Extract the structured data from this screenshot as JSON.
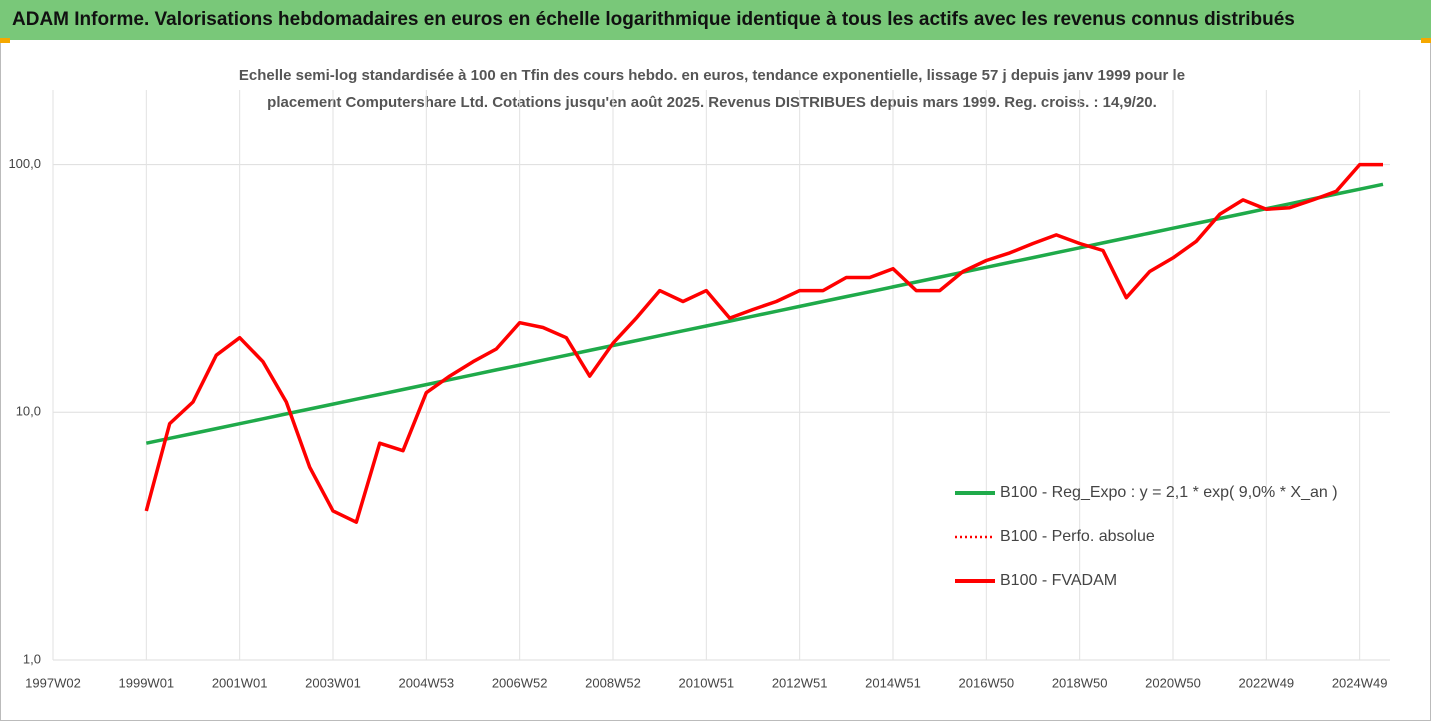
{
  "chart_data": {
    "type": "line",
    "title": "ADAM Informe. Valorisations hebdomadaires en euros en échelle logarithmique identique à tous les actifs avec les revenus connus distribués",
    "subtitle": [
      "Echelle semi-log standardisée à 100 en Tfin des cours hebdo. en euros, tendance exponentielle, lissage 57 j depuis janv 1999 pour le",
      "placement Computershare Ltd. Cotations jusqu'en août 2025. Revenus DISTRIBUES depuis mars 1999. Reg. croiss. : 14,9/20."
    ],
    "categories": [
      "1997W02",
      null,
      null,
      null,
      "1999W01",
      null,
      null,
      null,
      "2001W01",
      null,
      null,
      null,
      "2003W01",
      null,
      null,
      null,
      "2004W53",
      null,
      null,
      null,
      "2006W52",
      null,
      null,
      null,
      "2008W52",
      null,
      null,
      null,
      "2010W51",
      null,
      null,
      null,
      "2012W51",
      null,
      null,
      null,
      "2014W51",
      null,
      null,
      null,
      "2016W50",
      null,
      null,
      null,
      "2018W50",
      null,
      null,
      null,
      "2020W50",
      null,
      null,
      null,
      "2022W49",
      null,
      null,
      null,
      "2024W49",
      null
    ],
    "series": [
      {
        "name": "B100 - Reg_Expo : y = 2,1 * exp( 9,0% *  X_an )",
        "color": "#1faa4a",
        "style": "solid",
        "values": [
          null,
          null,
          null,
          null,
          7.5,
          7.85,
          8.21,
          8.59,
          8.99,
          9.41,
          9.85,
          10.31,
          10.79,
          11.29,
          11.81,
          12.36,
          12.94,
          13.54,
          14.17,
          14.83,
          15.51,
          16.23,
          16.99,
          17.78,
          18.6,
          19.47,
          20.37,
          21.32,
          22.31,
          23.35,
          24.43,
          25.57,
          26.75,
          28.0,
          29.3,
          30.66,
          32.08,
          33.57,
          35.13,
          36.76,
          38.47,
          40.26,
          42.13,
          44.09,
          46.14,
          48.28,
          50.52,
          52.87,
          55.33,
          57.9,
          60.59,
          63.41,
          66.35,
          69.44,
          72.66,
          76.04,
          79.57,
          83.27
        ]
      },
      {
        "name": "B100 - Perfo. absolue",
        "color": "#ff0000",
        "style": "dotted",
        "values": [
          null,
          null,
          null,
          null,
          4,
          9,
          11,
          17,
          20,
          16,
          11,
          6,
          4,
          3.6,
          7.5,
          7,
          12,
          14,
          16,
          18,
          23,
          22,
          20,
          14,
          19,
          24,
          31,
          28,
          31,
          24,
          26,
          28,
          31,
          31,
          35,
          35,
          38,
          31,
          31,
          37,
          41,
          44,
          48,
          52,
          48,
          45,
          29,
          37,
          42,
          49,
          63,
          72,
          66,
          67,
          72,
          78,
          100,
          100
        ]
      },
      {
        "name": "B100 - FVADAM",
        "color": "#ff0000",
        "style": "solid",
        "values": [
          null,
          null,
          null,
          null,
          4,
          9,
          11,
          17,
          20,
          16,
          11,
          6,
          4,
          3.6,
          7.5,
          7,
          12,
          14,
          16,
          18,
          23,
          22,
          20,
          14,
          19,
          24,
          31,
          28,
          31,
          24,
          26,
          28,
          31,
          31,
          35,
          35,
          38,
          31,
          31,
          37,
          41,
          44,
          48,
          52,
          48,
          45,
          29,
          37,
          42,
          49,
          63,
          72,
          66,
          67,
          72,
          78,
          100,
          100
        ]
      }
    ],
    "ylim": [
      1,
      200
    ],
    "yticks": [
      {
        "value": 1,
        "label": "1,0"
      },
      {
        "value": 10,
        "label": "10,0"
      },
      {
        "value": 100,
        "label": "100,0"
      }
    ],
    "log_scale": true,
    "grid": true
  }
}
